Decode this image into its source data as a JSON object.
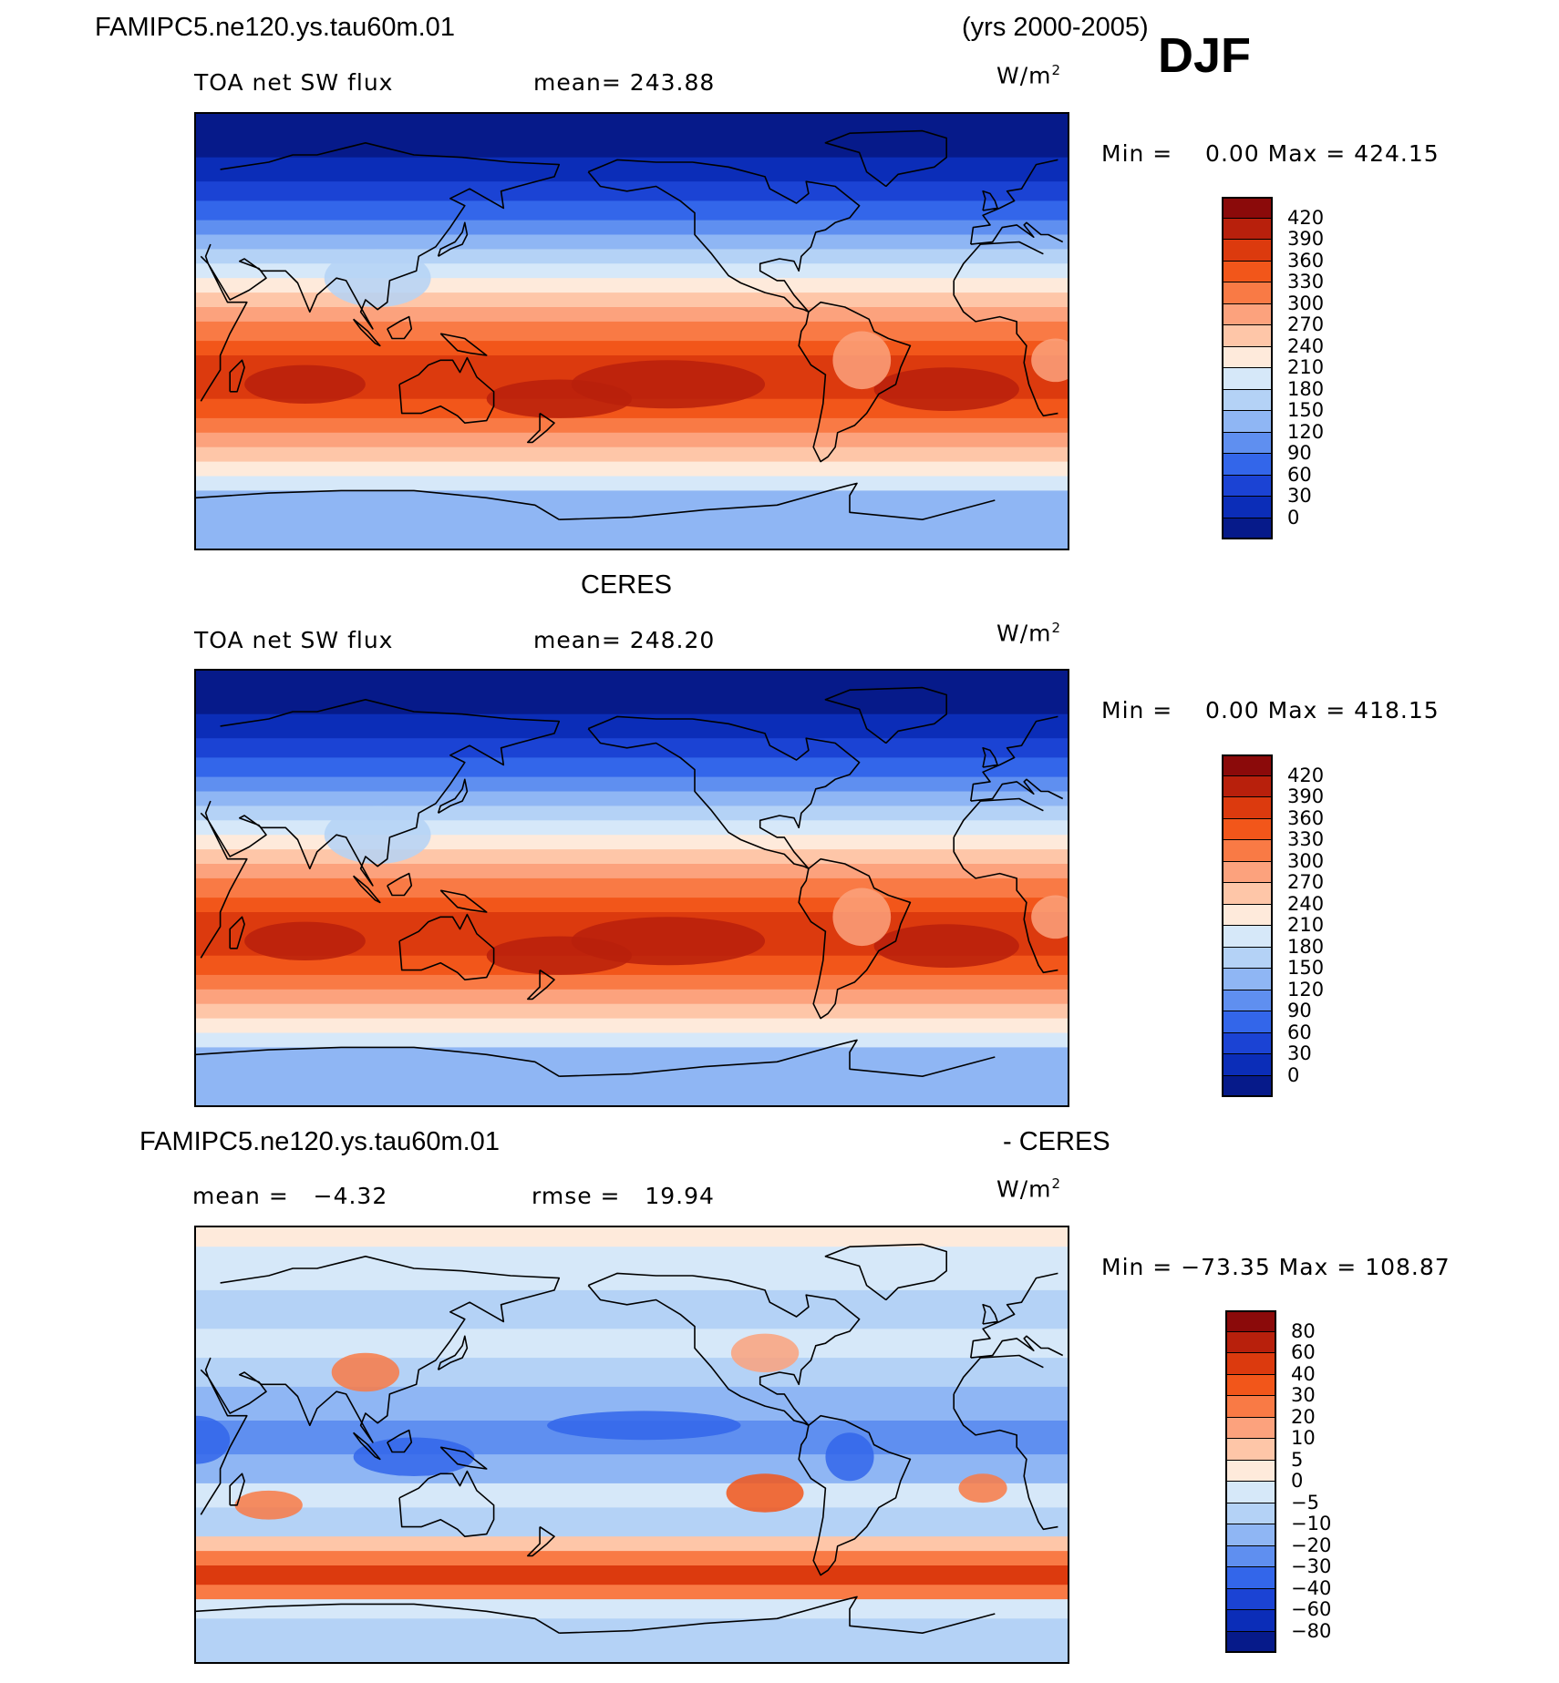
{
  "header": {
    "case_name": "FAMIPC5.ne120.ys.tau60m.01",
    "years": "(yrs 2000-2005)",
    "season": "DJF"
  },
  "chart_data": [
    {
      "type": "heatmap",
      "title": "",
      "variable_label": "TOA net SW flux",
      "stat_label": "mean= 243.88",
      "units": "W/m",
      "units_exp": "2",
      "min_max": "Min =    0.00 Max = 424.15",
      "legend_ticks": [
        "420",
        "390",
        "360",
        "330",
        "300",
        "270",
        "240",
        "210",
        "180",
        "150",
        "120",
        "90",
        "60",
        "30",
        "0"
      ],
      "legend_colors": [
        "#8b0a0a",
        "#b8200c",
        "#dc3a0e",
        "#f2561a",
        "#f97a45",
        "#fca27d",
        "#fec6a8",
        "#feeadb",
        "#d6e8f9",
        "#b4d2f6",
        "#8fb6f4",
        "#5f8ff0",
        "#3366ea",
        "#1b43d4",
        "#0b2db8",
        "#061a8a"
      ],
      "colorscale_type": "sequential"
    },
    {
      "type": "heatmap",
      "title": "CERES",
      "variable_label": "TOA net SW flux",
      "stat_label": "mean= 248.20",
      "units": "W/m",
      "units_exp": "2",
      "min_max": "Min =    0.00 Max = 418.15",
      "legend_ticks": [
        "420",
        "390",
        "360",
        "330",
        "300",
        "270",
        "240",
        "210",
        "180",
        "150",
        "120",
        "90",
        "60",
        "30",
        "0"
      ],
      "legend_colors": [
        "#8b0a0a",
        "#b8200c",
        "#dc3a0e",
        "#f2561a",
        "#f97a45",
        "#fca27d",
        "#fec6a8",
        "#feeadb",
        "#d6e8f9",
        "#b4d2f6",
        "#8fb6f4",
        "#5f8ff0",
        "#3366ea",
        "#1b43d4",
        "#0b2db8",
        "#061a8a"
      ],
      "colorscale_type": "sequential"
    },
    {
      "type": "heatmap",
      "title": "FAMIPC5.ne120.ys.tau60m.01",
      "title_right": "- CERES",
      "variable_label": "mean =   −4.32",
      "stat_label": "rmse =   19.94",
      "units": "W/m",
      "units_exp": "2",
      "min_max": "Min = −73.35 Max = 108.87",
      "legend_ticks": [
        "80",
        "60",
        "40",
        "30",
        "20",
        "10",
        "5",
        "0",
        "−5",
        "−10",
        "−20",
        "−30",
        "−40",
        "−60",
        "−80"
      ],
      "legend_colors": [
        "#8b0a0a",
        "#b8200c",
        "#dc3a0e",
        "#f2561a",
        "#f97a45",
        "#fca27d",
        "#fec6a8",
        "#feeadb",
        "#d6e8f9",
        "#b4d2f6",
        "#8fb6f4",
        "#5f8ff0",
        "#3366ea",
        "#1b43d4",
        "#0b2db8",
        "#061a8a"
      ],
      "colorscale_type": "diverging"
    }
  ]
}
